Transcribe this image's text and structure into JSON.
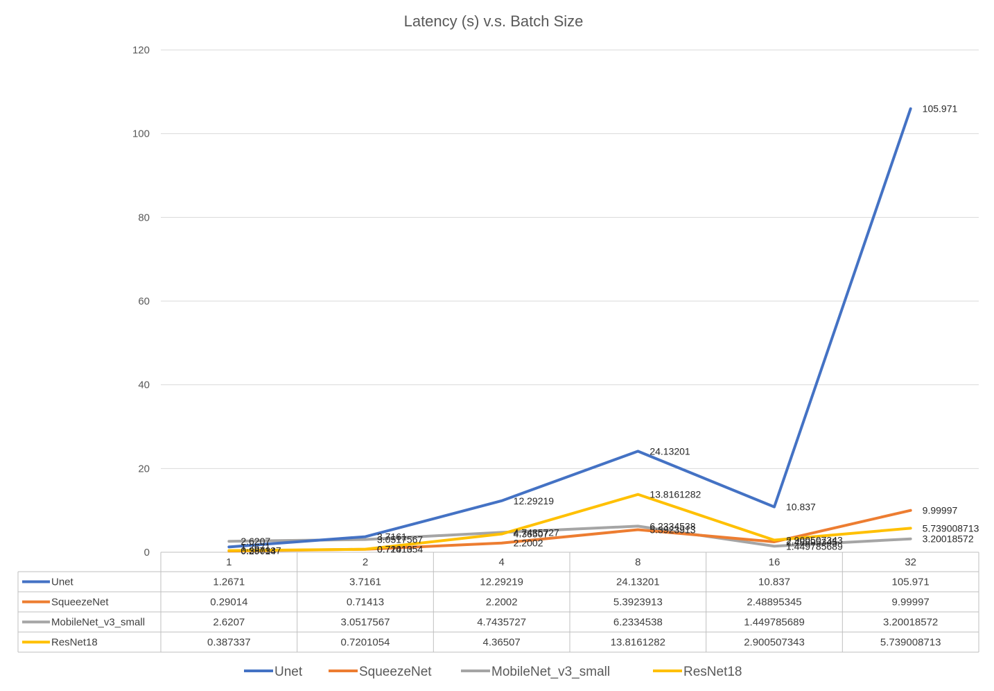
{
  "chart_data": {
    "type": "line",
    "title": "Latency (s) v.s. Batch Size",
    "categories": [
      "1",
      "2",
      "4",
      "8",
      "16",
      "32"
    ],
    "ylim": [
      0,
      120
    ],
    "yticks": [
      0,
      20,
      40,
      60,
      80,
      100,
      120
    ],
    "grid": true,
    "legend_position": "bottom",
    "data_table": true,
    "series": [
      {
        "name": "Unet",
        "color": "#4472C4",
        "values": [
          1.2671,
          3.7161,
          12.29219,
          24.13201,
          10.837,
          105.971
        ],
        "labels": [
          "1.2671",
          "3.7161",
          "12.29219",
          "24.13201",
          "10.837",
          "105.971"
        ]
      },
      {
        "name": "SqueezeNet",
        "color": "#ED7D31",
        "values": [
          0.29014,
          0.71413,
          2.2002,
          5.3923913,
          2.48895345,
          9.99997
        ],
        "labels": [
          "0.29014",
          "0.71413",
          "2.2002",
          "5.3923913",
          "2.48895345",
          "9.99997"
        ]
      },
      {
        "name": "MobileNet_v3_small",
        "color": "#A5A5A5",
        "values": [
          2.6207,
          3.0517567,
          4.7435727,
          6.2334538,
          1.449785689,
          3.20018572
        ],
        "labels": [
          "2.6207",
          "3.0517567",
          "4.7435727",
          "6.2334538",
          "1.449785689",
          "3.20018572"
        ]
      },
      {
        "name": "ResNet18",
        "color": "#FFC000",
        "values": [
          0.387337,
          0.7201054,
          4.36507,
          13.8161282,
          2.900507343,
          5.739008713
        ],
        "labels": [
          "0.387337",
          "0.7201054",
          "4.36507",
          "13.8161282",
          "2.900507343",
          "5.739008713"
        ]
      }
    ]
  }
}
